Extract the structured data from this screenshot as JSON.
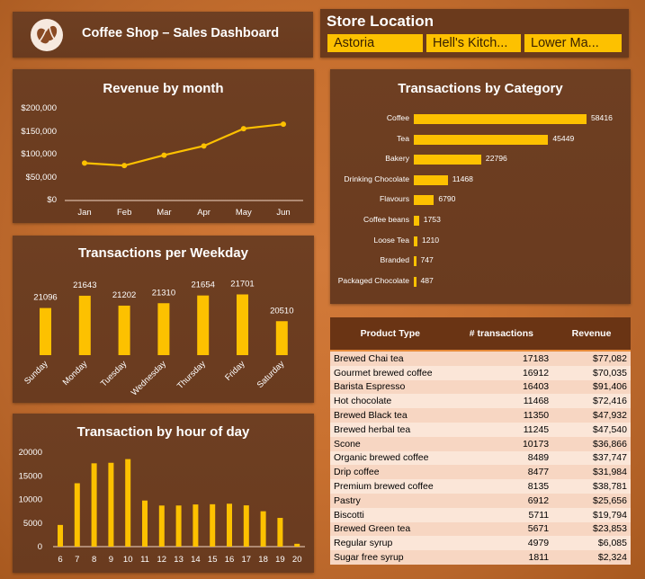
{
  "header": {
    "title": "Coffee Shop – Sales Dashboard",
    "logo_icon": "coffee-beans-icon"
  },
  "store_location": {
    "title": "Store Location",
    "options": [
      "Astoria",
      "Hell's Kitch...",
      "Lower Ma..."
    ]
  },
  "colors": {
    "accent": "#fdc100",
    "panel": "#6a3b1f",
    "background": "#c8702f"
  },
  "charts": {
    "revenue": {
      "title": "Revenue by month"
    },
    "weekday": {
      "title": "Transactions per Weekday"
    },
    "hour": {
      "title": "Transaction by hour of day"
    },
    "category": {
      "title": "Transactions by Category"
    }
  },
  "chart_data": [
    {
      "type": "line",
      "title": "Revenue by month",
      "categories": [
        "Jan",
        "Feb",
        "Mar",
        "Apr",
        "May",
        "Jun"
      ],
      "values": [
        81678,
        76145,
        98835,
        118941,
        156728,
        166486
      ],
      "ylim": [
        0,
        200000
      ],
      "yticks": [
        "$0",
        "$50,000",
        "$100,000",
        "$150,000",
        "$200,000"
      ],
      "grid": false
    },
    {
      "type": "bar",
      "title": "Transactions per Weekday",
      "categories": [
        "Sunday",
        "Monday",
        "Tuesday",
        "Wednesday",
        "Thursday",
        "Friday",
        "Saturday"
      ],
      "values": [
        21096,
        21643,
        21202,
        21310,
        21654,
        21701,
        20510
      ]
    },
    {
      "type": "bar",
      "title": "Transaction by hour of day",
      "categories": [
        "6",
        "7",
        "8",
        "9",
        "10",
        "11",
        "12",
        "13",
        "14",
        "15",
        "16",
        "17",
        "18",
        "19",
        "20"
      ],
      "values": [
        4594,
        13428,
        17654,
        17764,
        18545,
        9766,
        8708,
        8714,
        8933,
        8979,
        9093,
        8745,
        7498,
        6092,
        603
      ],
      "ylim": [
        0,
        20000
      ],
      "yticks": [
        "0",
        "5000",
        "10000",
        "15000",
        "20000"
      ]
    },
    {
      "type": "bar",
      "title": "Transactions by Category",
      "orientation": "horizontal",
      "categories": [
        "Coffee",
        "Tea",
        "Bakery",
        "Drinking Chocolate",
        "Flavours",
        "Coffee beans",
        "Loose Tea",
        "Branded",
        "Packaged Chocolate"
      ],
      "values": [
        58416,
        45449,
        22796,
        11468,
        6790,
        1753,
        1210,
        747,
        487
      ]
    },
    {
      "type": "table",
      "columns": [
        "Product Type",
        "# transactions",
        "Revenue"
      ],
      "rows": [
        [
          "Brewed Chai tea",
          "17183",
          "$77,082"
        ],
        [
          "Gourmet brewed coffee",
          "16912",
          "$70,035"
        ],
        [
          "Barista Espresso",
          "16403",
          "$91,406"
        ],
        [
          "Hot chocolate",
          "11468",
          "$72,416"
        ],
        [
          "Brewed Black tea",
          "11350",
          "$47,932"
        ],
        [
          "Brewed herbal tea",
          "11245",
          "$47,540"
        ],
        [
          "Scone",
          "10173",
          "$36,866"
        ],
        [
          "Organic brewed coffee",
          "8489",
          "$37,747"
        ],
        [
          "Drip coffee",
          "8477",
          "$31,984"
        ],
        [
          "Premium brewed coffee",
          "8135",
          "$38,781"
        ],
        [
          "Pastry",
          "6912",
          "$25,656"
        ],
        [
          "Biscotti",
          "5711",
          "$19,794"
        ],
        [
          "Brewed Green tea",
          "5671",
          "$23,853"
        ],
        [
          "Regular syrup",
          "4979",
          "$6,085"
        ],
        [
          "Sugar free syrup",
          "1811",
          "$2,324"
        ]
      ]
    }
  ]
}
